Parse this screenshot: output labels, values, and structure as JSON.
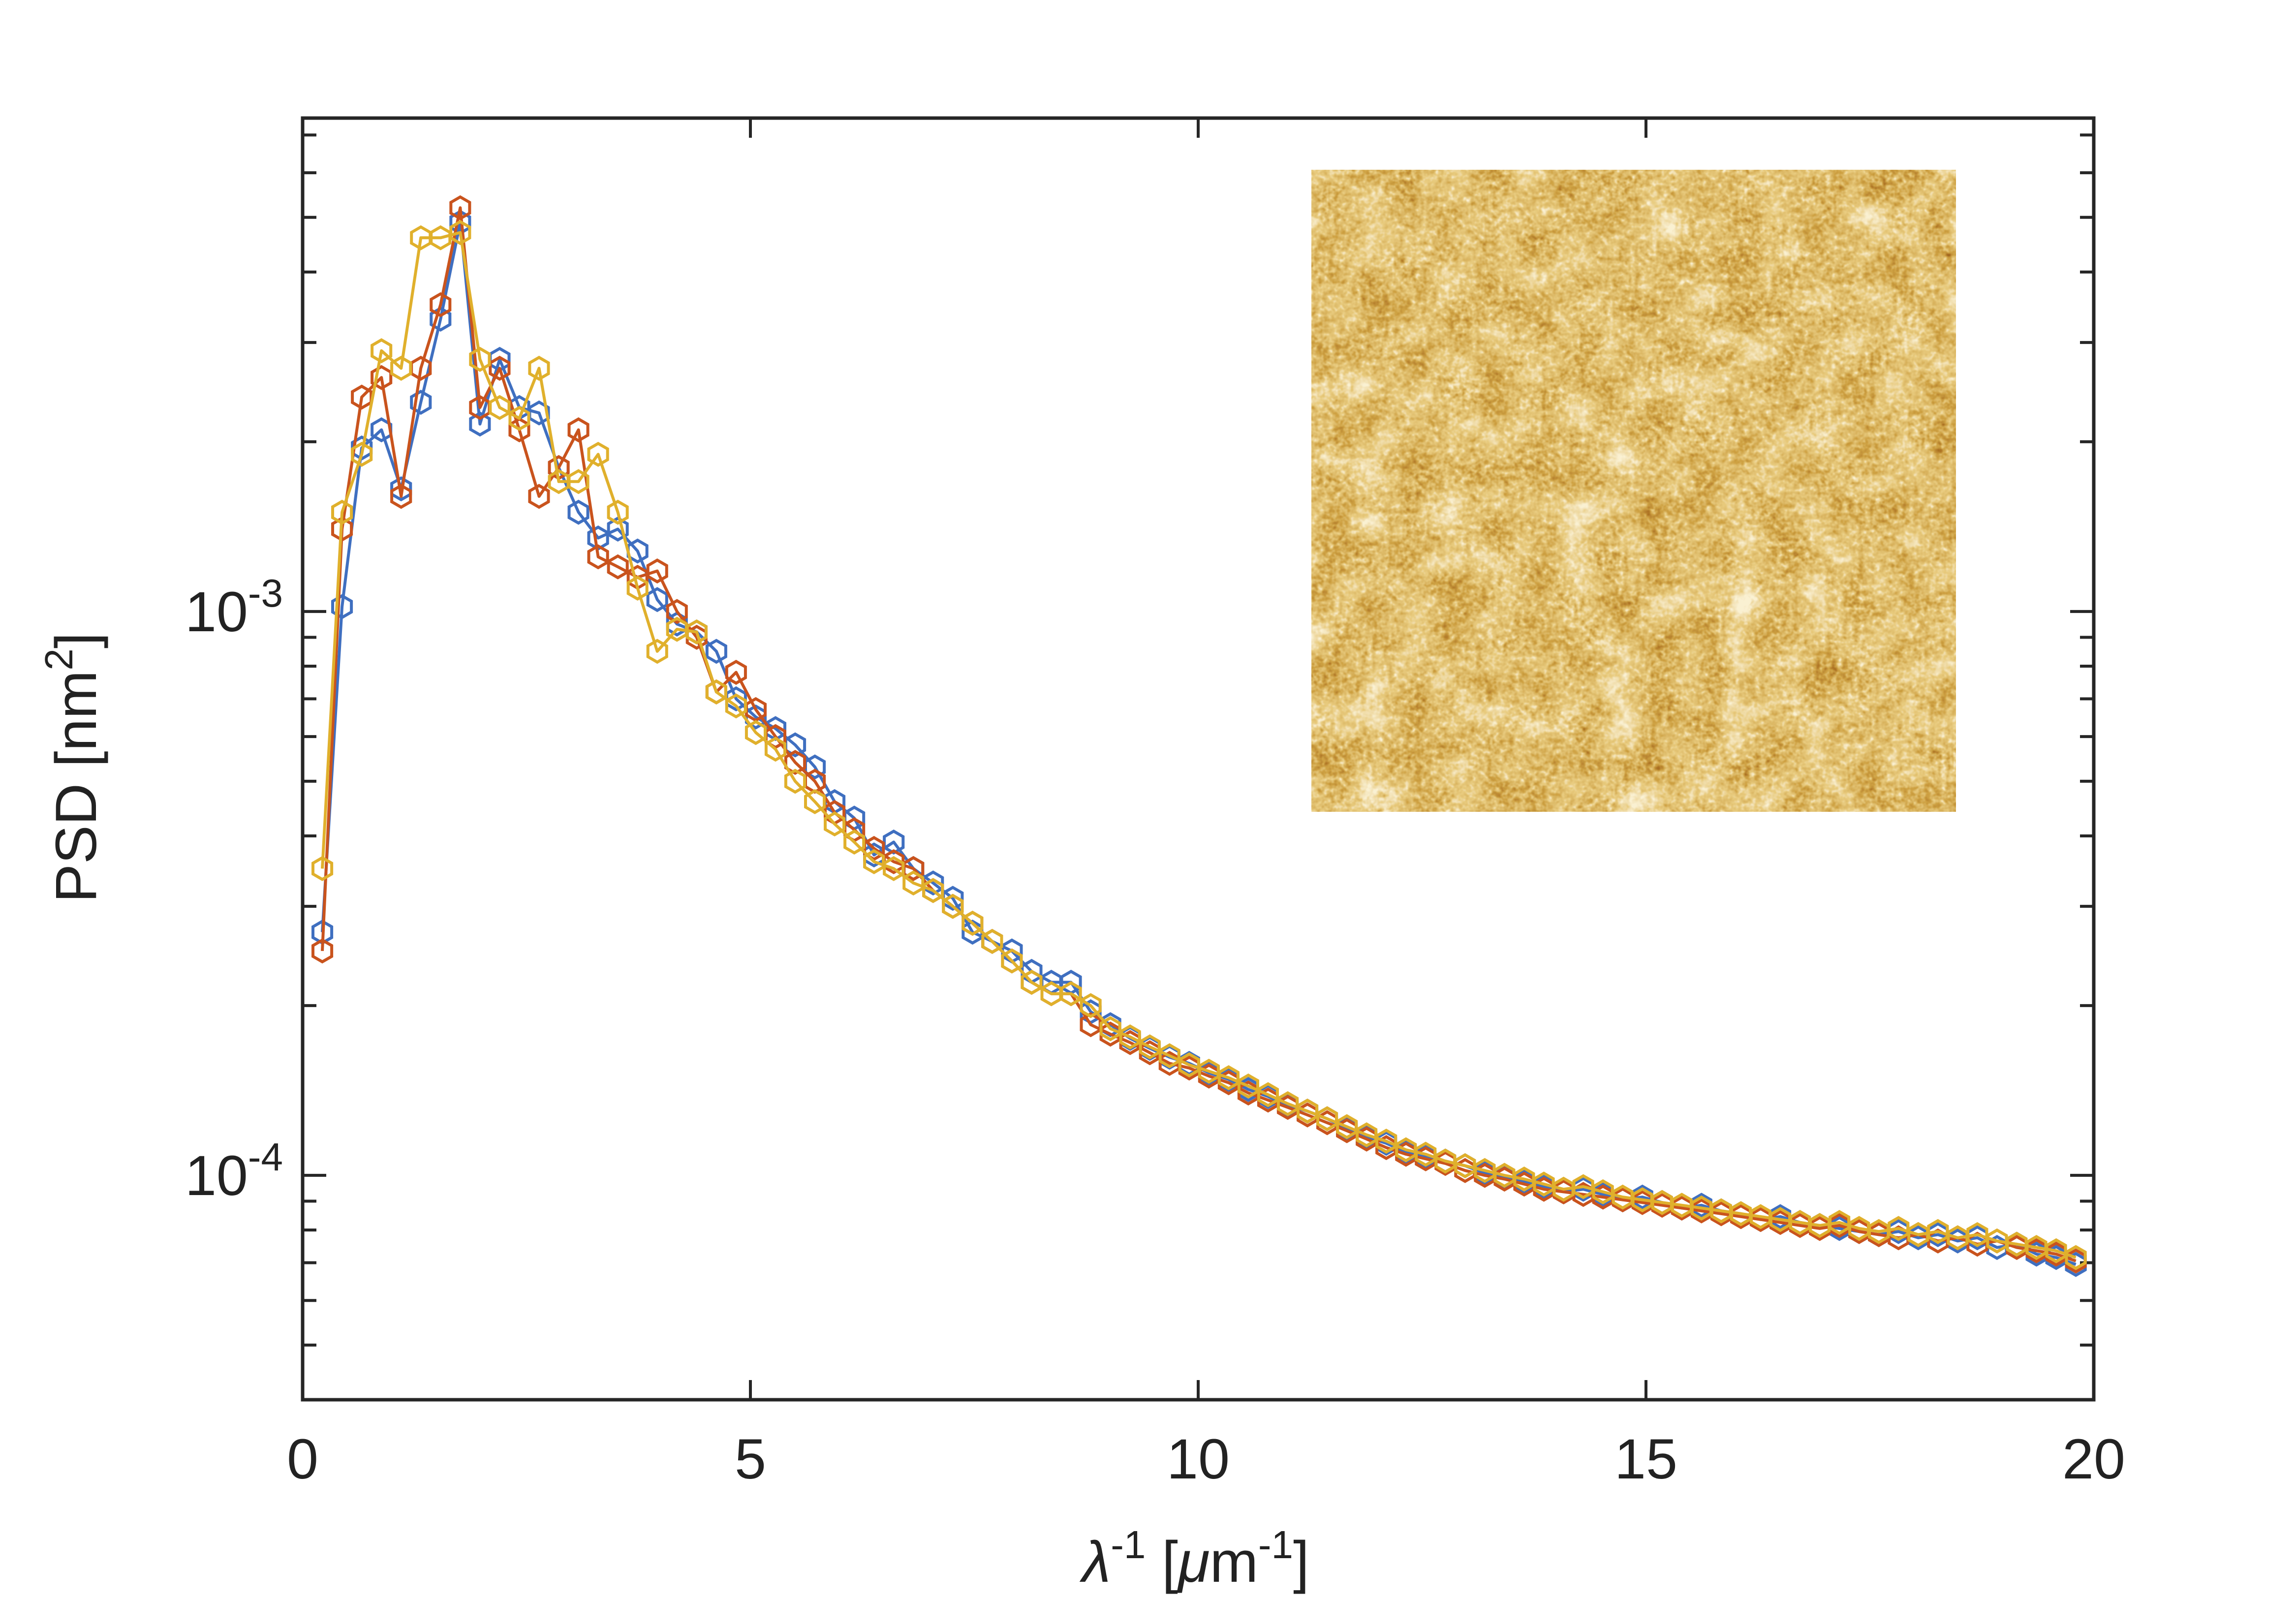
{
  "chart_data": {
    "type": "line",
    "title": "",
    "xlabel": {
      "main": "λ",
      "sup": "-1",
      "rest": " [",
      "mu": "μ",
      "unit": "m",
      "unit_sup": "-1",
      "close": "]"
    },
    "ylabel": {
      "main": "PSD [nm",
      "sup": "2",
      "close": "]"
    },
    "xlim": [
      0,
      20
    ],
    "ylim": [
      4e-05,
      0.0075
    ],
    "yscale": "log",
    "x_ticks": [
      {
        "value": 0,
        "label": "0"
      },
      {
        "value": 5,
        "label": "5"
      },
      {
        "value": 10,
        "label": "10"
      },
      {
        "value": 15,
        "label": "15"
      },
      {
        "value": 20,
        "label": "20"
      }
    ],
    "y_ticks": [
      {
        "value": 0.001,
        "base": "10",
        "exp": "-3"
      },
      {
        "value": 0.0001,
        "base": "10",
        "exp": "-4"
      }
    ],
    "marker": "hexagon-open",
    "inset": {
      "type": "image",
      "description_name": "afm-height-map",
      "colormap": [
        "#3a0d02",
        "#6f2f05",
        "#a15e10",
        "#cf9a35",
        "#f3e2a6"
      ]
    },
    "x": [
      0.22,
      0.44,
      0.66,
      0.88,
      1.1,
      1.32,
      1.54,
      1.76,
      1.98,
      2.2,
      2.42,
      2.64,
      2.86,
      3.08,
      3.3,
      3.52,
      3.74,
      3.96,
      4.18,
      4.4,
      4.62,
      4.84,
      5.06,
      5.28,
      5.5,
      5.72,
      5.94,
      6.16,
      6.38,
      6.6,
      6.82,
      7.04,
      7.26,
      7.48,
      7.7,
      7.92,
      8.14,
      8.36,
      8.58,
      8.8,
      9.02,
      9.24,
      9.46,
      9.68,
      9.9,
      10.12,
      10.34,
      10.56,
      10.78,
      11.0,
      11.22,
      11.44,
      11.66,
      11.88,
      12.1,
      12.32,
      12.54,
      12.76,
      12.98,
      13.2,
      13.42,
      13.64,
      13.86,
      14.08,
      14.3,
      14.52,
      14.74,
      14.96,
      15.18,
      15.4,
      15.62,
      15.84,
      16.06,
      16.28,
      16.5,
      16.72,
      16.94,
      17.16,
      17.38,
      17.6,
      17.82,
      18.04,
      18.26,
      18.48,
      18.7,
      18.92,
      19.14,
      19.36,
      19.58,
      19.8
    ],
    "series": [
      {
        "name": "series-1",
        "color": "#3F6FC0",
        "values": [
          0.00027,
          0.00102,
          0.00195,
          0.0021,
          0.00165,
          0.00235,
          0.0033,
          0.0049,
          0.00215,
          0.0028,
          0.0023,
          0.00225,
          0.0018,
          0.0015,
          0.00135,
          0.0014,
          0.00128,
          0.00105,
          0.00095,
          0.00092,
          0.00085,
          0.0007,
          0.00065,
          0.00062,
          0.00058,
          0.00053,
          0.00046,
          0.00043,
          0.00037,
          0.00039,
          0.00035,
          0.00033,
          0.00031,
          0.00027,
          0.00026,
          0.00025,
          0.00023,
          0.00022,
          0.00022,
          0.000195,
          0.000185,
          0.000175,
          0.000168,
          0.000162,
          0.000158,
          0.000152,
          0.000148,
          0.000142,
          0.000138,
          0.000133,
          0.00013,
          0.000126,
          0.000121,
          0.000117,
          0.000114,
          0.00011,
          0.000108,
          0.000106,
          0.000104,
          0.000101,
          9.95e-05,
          9.75e-05,
          9.55e-05,
          9.35e-05,
          9.45e-05,
          9.25e-05,
          9.05e-05,
          9.15e-05,
          8.95e-05,
          8.75e-05,
          8.85e-05,
          8.65e-05,
          8.55e-05,
          8.35e-05,
          8.45e-05,
          8.25e-05,
          8.15e-05,
          8.05e-05,
          7.95e-05,
          7.85e-05,
          7.95e-05,
          7.75e-05,
          7.85e-05,
          7.65e-05,
          7.75e-05,
          7.45e-05,
          7.55e-05,
          7.25e-05,
          7.15e-05,
          6.95e-05
        ]
      },
      {
        "name": "series-2",
        "color": "#C9531D",
        "values": [
          0.00025,
          0.0014,
          0.0024,
          0.0026,
          0.0016,
          0.0027,
          0.0035,
          0.0052,
          0.0023,
          0.0027,
          0.0021,
          0.0016,
          0.0018,
          0.0021,
          0.00125,
          0.0012,
          0.00115,
          0.00118,
          0.001,
          0.0009,
          0.00072,
          0.00078,
          0.00067,
          0.0006,
          0.00054,
          0.0005,
          0.00044,
          0.00041,
          0.00038,
          0.00036,
          0.00035,
          0.00032,
          0.0003,
          0.00028,
          0.00026,
          0.00024,
          0.00022,
          0.00021,
          0.00021,
          0.000185,
          0.000178,
          0.000172,
          0.000165,
          0.000158,
          0.000155,
          0.00015,
          0.000146,
          0.00014,
          0.000136,
          0.000132,
          0.000128,
          0.000124,
          0.00012,
          0.000116,
          0.000112,
          0.000109,
          0.000107,
          0.000105,
          0.000102,
          0.0001,
          9.85e-05,
          9.65e-05,
          9.45e-05,
          9.35e-05,
          9.25e-05,
          9.15e-05,
          9.05e-05,
          8.95e-05,
          8.85e-05,
          8.75e-05,
          8.65e-05,
          8.55e-05,
          8.45e-05,
          8.35e-05,
          8.25e-05,
          8.15e-05,
          8.05e-05,
          8.15e-05,
          7.95e-05,
          7.85e-05,
          7.75e-05,
          7.85e-05,
          7.65e-05,
          7.75e-05,
          7.55e-05,
          7.65e-05,
          7.45e-05,
          7.35e-05,
          7.25e-05,
          7.05e-05
        ]
      },
      {
        "name": "series-3",
        "color": "#E0B02C",
        "values": [
          0.00035,
          0.0015,
          0.0019,
          0.0029,
          0.0027,
          0.0046,
          0.0046,
          0.0047,
          0.0028,
          0.0023,
          0.0022,
          0.0027,
          0.0017,
          0.0017,
          0.0019,
          0.0015,
          0.0011,
          0.00085,
          0.00093,
          0.00092,
          0.00072,
          0.00068,
          0.00061,
          0.00057,
          0.0005,
          0.00046,
          0.00042,
          0.00039,
          0.00036,
          0.00035,
          0.00033,
          0.00032,
          0.0003,
          0.00028,
          0.00026,
          0.00024,
          0.00022,
          0.00021,
          0.00021,
          0.0002,
          0.000182,
          0.000176,
          0.000169,
          0.000163,
          0.000157,
          0.000153,
          0.000149,
          0.000144,
          0.000139,
          0.000134,
          0.00013,
          0.000126,
          0.000122,
          0.000118,
          0.000115,
          0.000111,
          0.000109,
          0.000106,
          0.000104,
          0.000102,
          0.0001,
          9.85e-05,
          9.65e-05,
          9.45e-05,
          9.55e-05,
          9.35e-05,
          9.15e-05,
          9.05e-05,
          8.95e-05,
          8.85e-05,
          8.75e-05,
          8.65e-05,
          8.55e-05,
          8.45e-05,
          8.35e-05,
          8.25e-05,
          8.15e-05,
          8.25e-05,
          8.05e-05,
          7.95e-05,
          8.05e-05,
          7.85e-05,
          7.95e-05,
          7.75e-05,
          7.85e-05,
          7.65e-05,
          7.55e-05,
          7.45e-05,
          7.35e-05,
          7.15e-05
        ]
      }
    ]
  }
}
